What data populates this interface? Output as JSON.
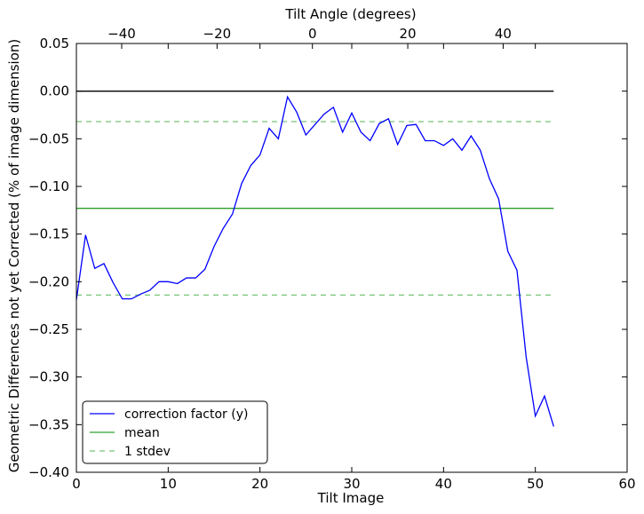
{
  "chart_data": {
    "type": "line",
    "xlabel": "Tilt Image",
    "ylabel": "Geometric Differences not yet Corrected (% of image dimension)",
    "top_xlabel": "Tilt Angle (degrees)",
    "xlim": [
      0,
      60
    ],
    "ylim": [
      -0.4,
      0.05
    ],
    "xticks": [
      0,
      10,
      20,
      30,
      40,
      50,
      60
    ],
    "yticks": [
      -0.4,
      -0.35,
      -0.3,
      -0.25,
      -0.2,
      -0.15,
      -0.1,
      -0.05,
      0.0,
      0.05
    ],
    "top_xlim": [
      -49.5,
      66.0
    ],
    "top_xticks": [
      -40,
      -20,
      0,
      20,
      40
    ],
    "top_xtick_labels": [
      "−40",
      "−20",
      "0",
      "20",
      "40"
    ],
    "xtick_labels": [
      "0",
      "10",
      "20",
      "30",
      "40",
      "50",
      "60"
    ],
    "ytick_labels": [
      "−0.40",
      "−0.35",
      "−0.30",
      "−0.25",
      "−0.20",
      "−0.15",
      "−0.10",
      "−0.05",
      "0.00",
      "0.05"
    ],
    "grid": false,
    "legend_position": "lower-left",
    "series": [
      {
        "name": "correction factor (y)",
        "style": "solid",
        "color": "#0000ff",
        "x": [
          0,
          1,
          2,
          3,
          4,
          5,
          6,
          7,
          8,
          9,
          10,
          11,
          12,
          13,
          14,
          15,
          16,
          17,
          18,
          19,
          20,
          21,
          22,
          23,
          24,
          25,
          26,
          27,
          28,
          29,
          30,
          31,
          32,
          33,
          34,
          35,
          36,
          37,
          38,
          39,
          40,
          41,
          42,
          43,
          44,
          45,
          46,
          47,
          48,
          49,
          50,
          51,
          52
        ],
        "y": [
          -0.219,
          -0.151,
          -0.186,
          -0.181,
          -0.201,
          -0.218,
          -0.218,
          -0.213,
          -0.209,
          -0.2,
          -0.2,
          -0.202,
          -0.196,
          -0.196,
          -0.187,
          -0.163,
          -0.144,
          -0.129,
          -0.097,
          -0.078,
          -0.067,
          -0.039,
          -0.05,
          -0.006,
          -0.022,
          -0.046,
          -0.035,
          -0.024,
          -0.017,
          -0.043,
          -0.023,
          -0.043,
          -0.052,
          -0.034,
          -0.029,
          -0.056,
          -0.036,
          -0.035,
          -0.052,
          -0.052,
          -0.057,
          -0.05,
          -0.062,
          -0.047,
          -0.062,
          -0.092,
          -0.113,
          -0.168,
          -0.188,
          -0.279,
          -0.341,
          -0.32,
          -0.352
        ]
      },
      {
        "name": "mean",
        "style": "solid",
        "color": "#2ca02c",
        "x": [
          0,
          52
        ],
        "y": [
          -0.123,
          -0.123
        ]
      },
      {
        "name": "1 stdev",
        "style": "dashed",
        "color": "#77c477",
        "x": [
          0,
          52
        ],
        "y": [
          -0.032,
          -0.032
        ]
      },
      {
        "name": "",
        "style": "dashed",
        "color": "#77c477",
        "x": [
          0,
          52
        ],
        "y": [
          -0.214,
          -0.214
        ]
      },
      {
        "name": "",
        "style": "solid",
        "color": "#000000",
        "x": [
          0,
          52
        ],
        "y": [
          0.0,
          0.0
        ]
      }
    ],
    "legend": [
      {
        "label": "correction factor (y)",
        "color": "#0000ff",
        "style": "solid"
      },
      {
        "label": "mean",
        "color": "#2ca02c",
        "style": "solid"
      },
      {
        "label": "1 stdev",
        "color": "#77c477",
        "style": "dashed"
      }
    ]
  }
}
